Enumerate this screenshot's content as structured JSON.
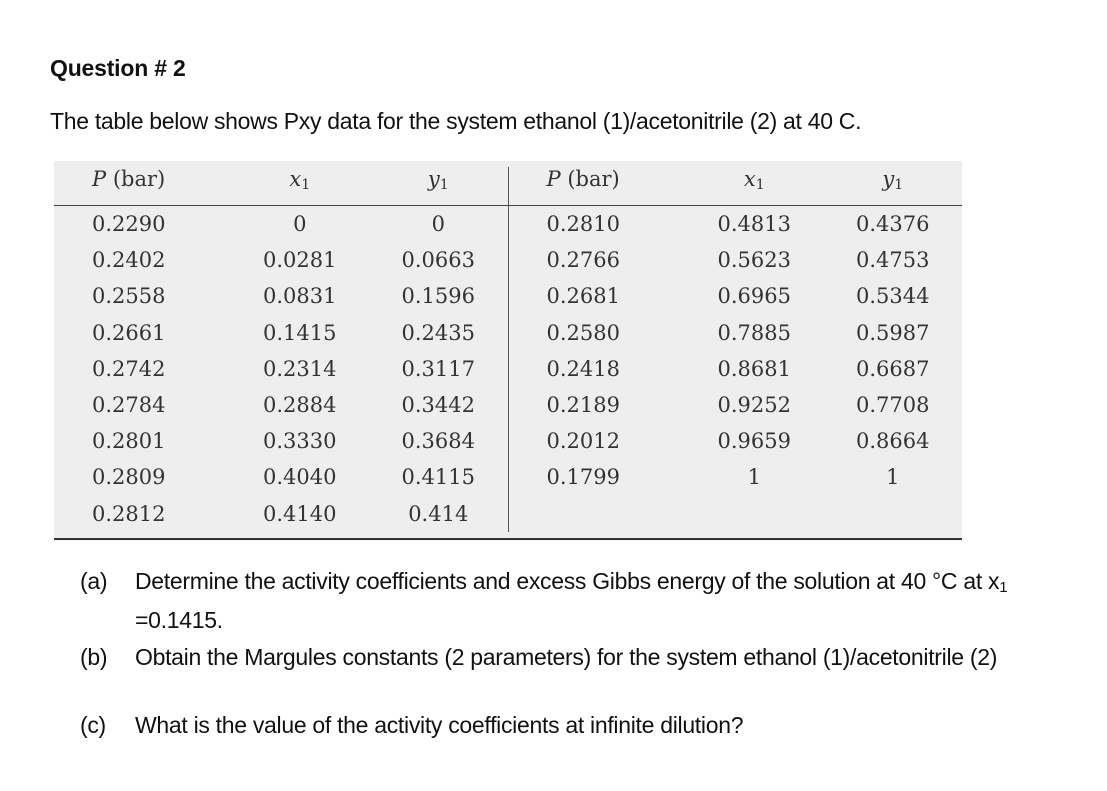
{
  "heading": "Question # 2",
  "intro": "The table below shows Pxy data for the system ethanol (1)/acetonitrile (2) at 40 C.",
  "table": {
    "headers": [
      {
        "main": "P",
        "rest": " (bar)",
        "sub": ""
      },
      {
        "main": "x",
        "rest": "",
        "sub": "1"
      },
      {
        "main": "y",
        "rest": "",
        "sub": "1"
      },
      {
        "main": "P",
        "rest": " (bar)",
        "sub": ""
      },
      {
        "main": "x",
        "rest": "",
        "sub": "1"
      },
      {
        "main": "y",
        "rest": "",
        "sub": "1"
      }
    ],
    "rows": [
      [
        "0.2290",
        "0",
        "0",
        "0.2810",
        "0.4813",
        "0.4376"
      ],
      [
        "0.2402",
        "0.0281",
        "0.0663",
        "0.2766",
        "0.5623",
        "0.4753"
      ],
      [
        "0.2558",
        "0.0831",
        "0.1596",
        "0.2681",
        "0.6965",
        "0.5344"
      ],
      [
        "0.2661",
        "0.1415",
        "0.2435",
        "0.2580",
        "0.7885",
        "0.5987"
      ],
      [
        "0.2742",
        "0.2314",
        "0.3117",
        "0.2418",
        "0.8681",
        "0.6687"
      ],
      [
        "0.2784",
        "0.2884",
        "0.3442",
        "0.2189",
        "0.9252",
        "0.7708"
      ],
      [
        "0.2801",
        "0.3330",
        "0.3684",
        "0.2012",
        "0.9659",
        "0.8664"
      ],
      [
        "0.2809",
        "0.4040",
        "0.4115",
        "0.1799",
        "1",
        "1"
      ],
      [
        "0.2812",
        "0.4140",
        "0.414",
        "",
        "",
        ""
      ]
    ]
  },
  "questions": {
    "a": {
      "marker": "(a)",
      "text": "Determine the activity coefficients and excess Gibbs energy of the solution at 40 °C at x",
      "sub": "1",
      "text_end": " =0.1415."
    },
    "b": {
      "marker": "(b)",
      "text": "Obtain the Margules constants (2 parameters) for the system ethanol (1)/acetonitrile (2)"
    },
    "c": {
      "marker": "(c)",
      "text": "What is the value of the activity coefficients at infinite dilution?"
    }
  }
}
